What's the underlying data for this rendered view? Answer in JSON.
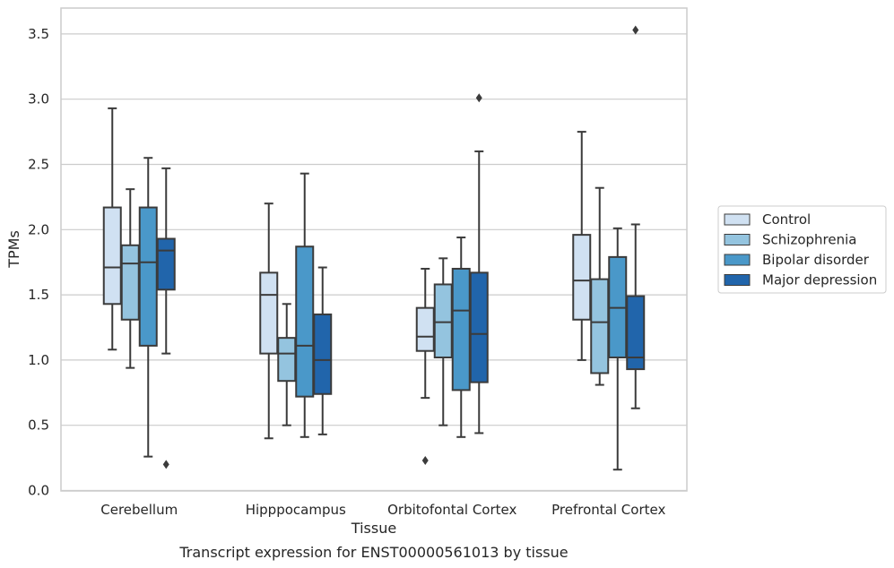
{
  "chart_data": {
    "type": "box",
    "xlabel": "Tissue",
    "ylabel": "TPMs",
    "caption": "Transcript expression for ENST00000561013 by tissue",
    "ylim": [
      0,
      3.7
    ],
    "yticks": [
      0.0,
      0.5,
      1.0,
      1.5,
      2.0,
      2.5,
      3.0,
      3.5
    ],
    "ytick_labels": [
      "0.0",
      "0.5",
      "1.0",
      "1.5",
      "2.0",
      "2.5",
      "3.0",
      "3.5"
    ],
    "grid": "horizontal",
    "legend_placement": "right",
    "categories": [
      "Cerebellum",
      "Hipppocampus",
      "Orbitofontal Cortex",
      "Prefrontal Cortex"
    ],
    "series": [
      {
        "name": "Control",
        "color": "#d0e1f2",
        "boxes": [
          {
            "whislo": 1.08,
            "q1": 1.43,
            "med": 1.71,
            "q3": 2.17,
            "whishi": 2.93,
            "fliers": []
          },
          {
            "whislo": 0.4,
            "q1": 1.05,
            "med": 1.5,
            "q3": 1.67,
            "whishi": 2.2,
            "fliers": []
          },
          {
            "whislo": 0.71,
            "q1": 1.07,
            "med": 1.18,
            "q3": 1.4,
            "whishi": 1.7,
            "fliers": [
              0.23
            ]
          },
          {
            "whislo": 1.0,
            "q1": 1.31,
            "med": 1.61,
            "q3": 1.96,
            "whishi": 2.75,
            "fliers": []
          }
        ]
      },
      {
        "name": "Schizophrenia",
        "color": "#94c4df",
        "boxes": [
          {
            "whislo": 0.94,
            "q1": 1.31,
            "med": 1.74,
            "q3": 1.88,
            "whishi": 2.31,
            "fliers": []
          },
          {
            "whislo": 0.5,
            "q1": 0.84,
            "med": 1.05,
            "q3": 1.17,
            "whishi": 1.43,
            "fliers": []
          },
          {
            "whislo": 0.5,
            "q1": 1.02,
            "med": 1.29,
            "q3": 1.58,
            "whishi": 1.78,
            "fliers": []
          },
          {
            "whislo": 0.81,
            "q1": 0.9,
            "med": 1.29,
            "q3": 1.62,
            "whishi": 2.32,
            "fliers": []
          }
        ]
      },
      {
        "name": "Bipolar disorder",
        "color": "#4a98c9",
        "boxes": [
          {
            "whislo": 0.26,
            "q1": 1.11,
            "med": 1.75,
            "q3": 2.17,
            "whishi": 2.55,
            "fliers": []
          },
          {
            "whislo": 0.41,
            "q1": 0.72,
            "med": 1.11,
            "q3": 1.87,
            "whishi": 2.43,
            "fliers": []
          },
          {
            "whislo": 0.41,
            "q1": 0.77,
            "med": 1.38,
            "q3": 1.7,
            "whishi": 1.94,
            "fliers": []
          },
          {
            "whislo": 0.16,
            "q1": 1.02,
            "med": 1.4,
            "q3": 1.79,
            "whishi": 2.01,
            "fliers": []
          }
        ]
      },
      {
        "name": "Major depression",
        "color": "#2165ab",
        "boxes": [
          {
            "whislo": 1.05,
            "q1": 1.54,
            "med": 1.84,
            "q3": 1.93,
            "whishi": 2.47,
            "fliers": [
              0.2
            ]
          },
          {
            "whislo": 0.43,
            "q1": 0.74,
            "med": 1.0,
            "q3": 1.35,
            "whishi": 1.71,
            "fliers": []
          },
          {
            "whislo": 0.44,
            "q1": 0.83,
            "med": 1.2,
            "q3": 1.67,
            "whishi": 2.6,
            "fliers": [
              3.01
            ]
          },
          {
            "whislo": 0.63,
            "q1": 0.93,
            "med": 1.02,
            "q3": 1.49,
            "whishi": 2.04,
            "fliers": [
              3.53
            ]
          }
        ]
      }
    ]
  }
}
